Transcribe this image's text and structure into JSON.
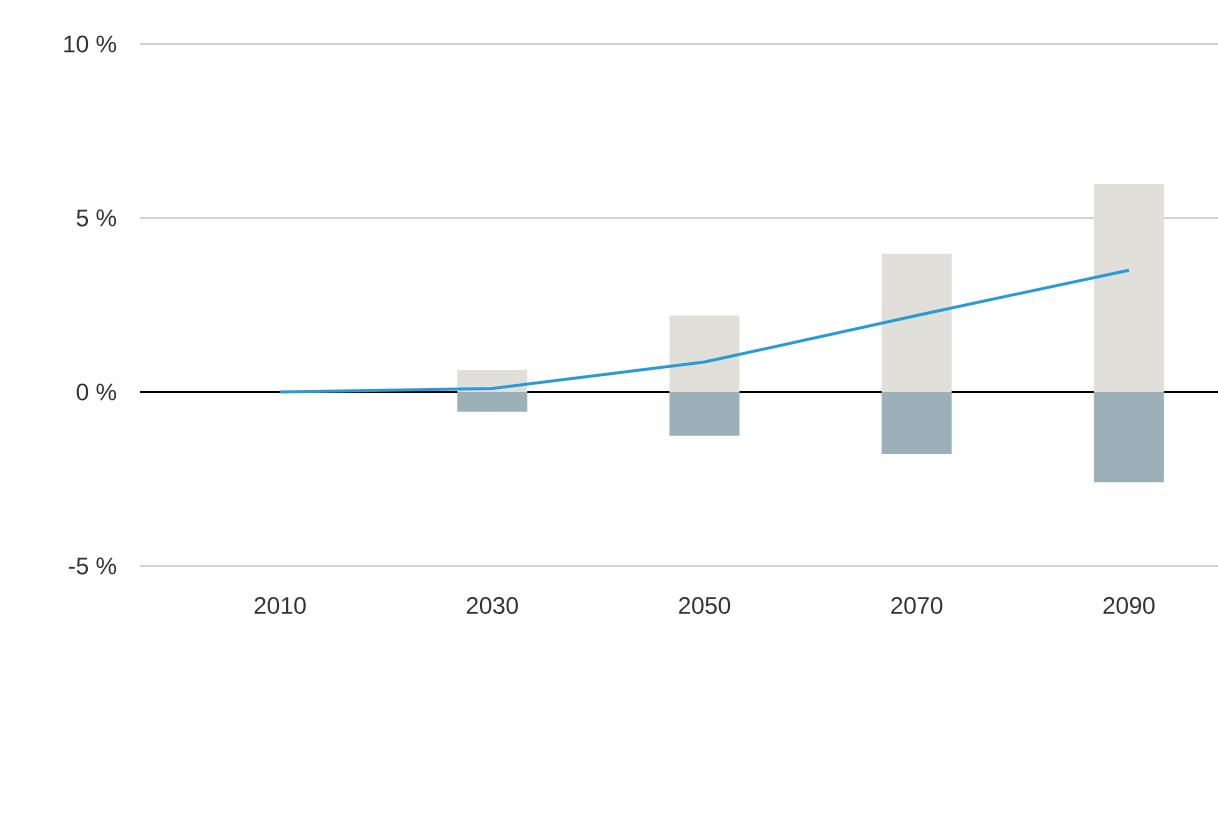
{
  "chart_data": {
    "type": "bar",
    "stacked": true,
    "categories": [
      "2010",
      "2030",
      "2050",
      "2070",
      "2090"
    ],
    "series": [
      {
        "color": "#e0dfda",
        "values": [
          null,
          0.63,
          2.2,
          3.97,
          5.98
        ]
      },
      {
        "color": "#9bb0b8",
        "values": [
          null,
          -0.57,
          -1.26,
          -1.78,
          -2.59
        ]
      },
      {
        "type": "line",
        "color": "#2a9ad6",
        "values": [
          0,
          0.1,
          0.86,
          2.2,
          3.5
        ]
      }
    ],
    "ylim": [
      -5,
      10
    ],
    "yticks": [
      {
        "value": -5,
        "label": "-5 %"
      },
      {
        "value": 0,
        "label": "0 %"
      },
      {
        "value": 5,
        "label": "5 %"
      },
      {
        "value": 10,
        "label": "10 %"
      }
    ],
    "grid": "y",
    "marker": "none",
    "line_style": "solid"
  }
}
